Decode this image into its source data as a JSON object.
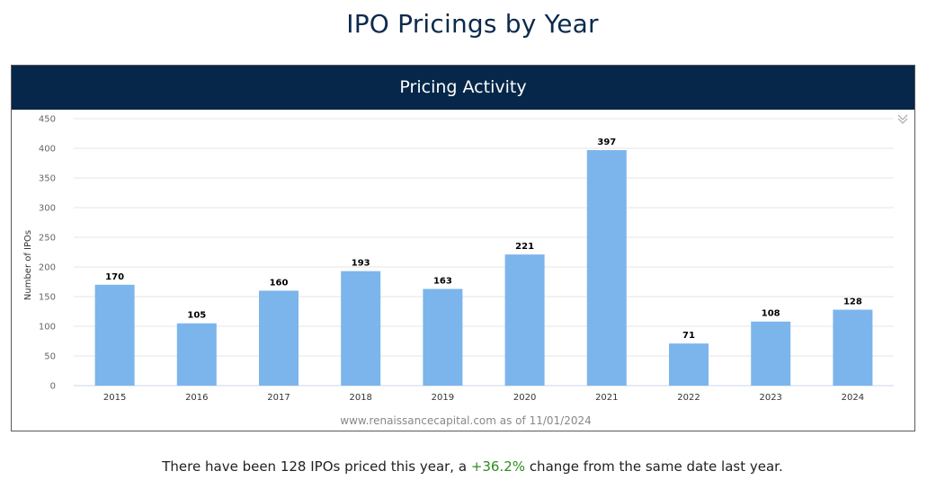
{
  "page_title": "IPO Pricings by Year",
  "panel": {
    "header": "Pricing Activity",
    "credits": "www.renaissancecapital.com as of 11/01/2024",
    "menu_icon": "double-chevron-down-icon"
  },
  "footer": {
    "prefix": "There have been 128 IPOs priced this year, a ",
    "change": "+36.2%",
    "suffix": " change from the same date last year.",
    "change_color": "#2e8b1f"
  },
  "chart_data": {
    "type": "bar",
    "categories": [
      "2015",
      "2016",
      "2017",
      "2018",
      "2019",
      "2020",
      "2021",
      "2022",
      "2023",
      "2024"
    ],
    "values": [
      170,
      105,
      160,
      193,
      163,
      221,
      397,
      71,
      108,
      128
    ],
    "title": "",
    "xlabel": "",
    "ylabel": "Number of IPOs",
    "ylim": [
      0,
      450
    ],
    "yticks": [
      0,
      50,
      100,
      150,
      200,
      250,
      300,
      350,
      400,
      450
    ],
    "grid": true,
    "legend": "none",
    "bar_color": "#7cb5ec"
  }
}
